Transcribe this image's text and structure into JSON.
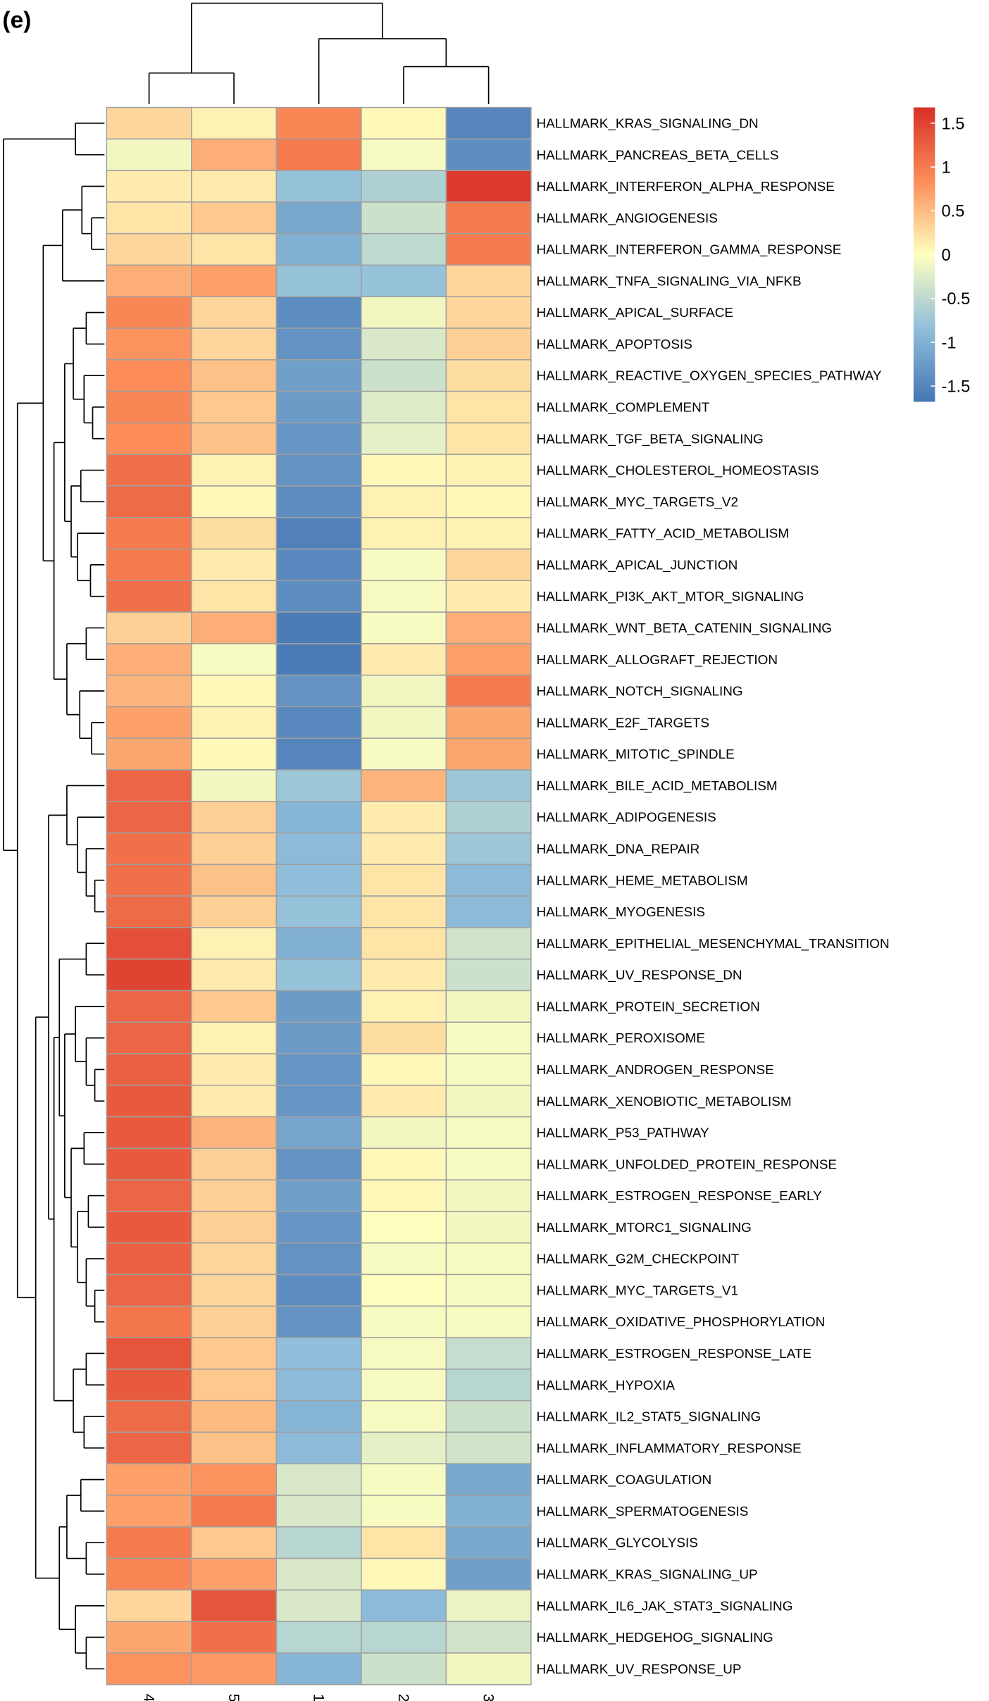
{
  "chart_data": {
    "type": "heatmap",
    "panel_label": "(e)",
    "columns": [
      "4",
      "5",
      "1",
      "2",
      "3"
    ],
    "rows": [
      "HALLMARK_KRAS_SIGNALING_DN",
      "HALLMARK_PANCREAS_BETA_CELLS",
      "HALLMARK_INTERFERON_ALPHA_RESPONSE",
      "HALLMARK_ANGIOGENESIS",
      "HALLMARK_INTERFERON_GAMMA_RESPONSE",
      "HALLMARK_TNFA_SIGNALING_VIA_NFKB",
      "HALLMARK_APICAL_SURFACE",
      "HALLMARK_APOPTOSIS",
      "HALLMARK_REACTIVE_OXYGEN_SPECIES_PATHWAY",
      "HALLMARK_COMPLEMENT",
      "HALLMARK_TGF_BETA_SIGNALING",
      "HALLMARK_CHOLESTEROL_HOMEOSTASIS",
      "HALLMARK_MYC_TARGETS_V2",
      "HALLMARK_FATTY_ACID_METABOLISM",
      "HALLMARK_APICAL_JUNCTION",
      "HALLMARK_PI3K_AKT_MTOR_SIGNALING",
      "HALLMARK_WNT_BETA_CATENIN_SIGNALING",
      "HALLMARK_ALLOGRAFT_REJECTION",
      "HALLMARK_NOTCH_SIGNALING",
      "HALLMARK_E2F_TARGETS",
      "HALLMARK_MITOTIC_SPINDLE",
      "HALLMARK_BILE_ACID_METABOLISM",
      "HALLMARK_ADIPOGENESIS",
      "HALLMARK_DNA_REPAIR",
      "HALLMARK_HEME_METABOLISM",
      "HALLMARK_MYOGENESIS",
      "HALLMARK_EPITHELIAL_MESENCHYMAL_TRANSITION",
      "HALLMARK_UV_RESPONSE_DN",
      "HALLMARK_PROTEIN_SECRETION",
      "HALLMARK_PEROXISOME",
      "HALLMARK_ANDROGEN_RESPONSE",
      "HALLMARK_XENOBIOTIC_METABOLISM",
      "HALLMARK_P53_PATHWAY",
      "HALLMARK_UNFOLDED_PROTEIN_RESPONSE",
      "HALLMARK_ESTROGEN_RESPONSE_EARLY",
      "HALLMARK_MTORC1_SIGNALING",
      "HALLMARK_G2M_CHECKPOINT",
      "HALLMARK_MYC_TARGETS_V1",
      "HALLMARK_OXIDATIVE_PHOSPHORYLATION",
      "HALLMARK_ESTROGEN_RESPONSE_LATE",
      "HALLMARK_HYPOXIA",
      "HALLMARK_IL2_STAT5_SIGNALING",
      "HALLMARK_INFLAMMATORY_RESPONSE",
      "HALLMARK_COAGULATION",
      "HALLMARK_SPERMATOGENESIS",
      "HALLMARK_GLYCOLYSIS",
      "HALLMARK_KRAS_SIGNALING_UP",
      "HALLMARK_IL6_JAK_STAT3_SIGNALING",
      "HALLMARK_HEDGEHOG_SIGNALING",
      "HALLMARK_UV_RESPONSE_UP"
    ],
    "values": [
      [
        0.3,
        0.1,
        0.9,
        0.05,
        -1.5
      ],
      [
        -0.1,
        0.6,
        1.0,
        -0.05,
        -1.4
      ],
      [
        0.15,
        0.15,
        -0.8,
        -0.6,
        1.6
      ],
      [
        0.2,
        0.4,
        -1.1,
        -0.4,
        1.0
      ],
      [
        0.3,
        0.2,
        -1.0,
        -0.5,
        1.0
      ],
      [
        0.6,
        0.7,
        -0.8,
        -0.8,
        0.3
      ],
      [
        0.9,
        0.3,
        -1.4,
        -0.1,
        0.3
      ],
      [
        0.8,
        0.3,
        -1.35,
        -0.3,
        0.35
      ],
      [
        0.85,
        0.45,
        -1.2,
        -0.4,
        0.25
      ],
      [
        0.9,
        0.4,
        -1.25,
        -0.25,
        0.2
      ],
      [
        0.85,
        0.45,
        -1.3,
        -0.2,
        0.2
      ],
      [
        1.1,
        0.1,
        -1.35,
        0.05,
        0.1
      ],
      [
        1.15,
        0.05,
        -1.4,
        0.1,
        0.05
      ],
      [
        1.0,
        0.25,
        -1.55,
        0.1,
        0.1
      ],
      [
        1.0,
        0.15,
        -1.45,
        -0.05,
        0.3
      ],
      [
        1.1,
        0.2,
        -1.4,
        -0.05,
        0.15
      ],
      [
        0.35,
        0.6,
        -1.6,
        -0.05,
        0.6
      ],
      [
        0.6,
        -0.05,
        -1.6,
        0.15,
        0.7
      ],
      [
        0.55,
        0.05,
        -1.35,
        -0.1,
        1.0
      ],
      [
        0.7,
        0.1,
        -1.45,
        -0.1,
        0.65
      ],
      [
        0.65,
        0.05,
        -1.5,
        -0.05,
        0.65
      ],
      [
        1.2,
        -0.1,
        -0.75,
        0.55,
        -0.75
      ],
      [
        1.2,
        0.35,
        -0.95,
        0.15,
        -0.6
      ],
      [
        1.1,
        0.35,
        -0.9,
        0.15,
        -0.75
      ],
      [
        1.1,
        0.45,
        -0.85,
        0.2,
        -0.9
      ],
      [
        1.15,
        0.35,
        -0.8,
        0.2,
        -0.9
      ],
      [
        1.4,
        0.1,
        -1.0,
        0.2,
        -0.35
      ],
      [
        1.5,
        0.15,
        -0.8,
        0.15,
        -0.4
      ],
      [
        1.2,
        0.4,
        -1.25,
        0.1,
        -0.1
      ],
      [
        1.2,
        0.1,
        -1.25,
        0.25,
        -0.05
      ],
      [
        1.25,
        0.15,
        -1.3,
        0.05,
        -0.05
      ],
      [
        1.3,
        0.15,
        -1.3,
        0.15,
        -0.1
      ],
      [
        1.3,
        0.55,
        -1.15,
        -0.1,
        -0.05
      ],
      [
        1.3,
        0.35,
        -1.35,
        0.05,
        -0.05
      ],
      [
        1.2,
        0.35,
        -1.2,
        0.05,
        -0.1
      ],
      [
        1.3,
        0.35,
        -1.3,
        0.0,
        -0.1
      ],
      [
        1.25,
        0.3,
        -1.35,
        -0.05,
        -0.05
      ],
      [
        1.2,
        0.3,
        -1.4,
        0.0,
        -0.05
      ],
      [
        1.05,
        0.35,
        -1.35,
        -0.05,
        -0.05
      ],
      [
        1.35,
        0.4,
        -0.85,
        -0.05,
        -0.45
      ],
      [
        1.3,
        0.4,
        -0.9,
        -0.05,
        -0.55
      ],
      [
        1.15,
        0.5,
        -0.95,
        -0.05,
        -0.4
      ],
      [
        1.2,
        0.45,
        -0.9,
        -0.2,
        -0.35
      ],
      [
        0.7,
        0.8,
        -0.3,
        -0.05,
        -1.1
      ],
      [
        0.7,
        1.0,
        -0.3,
        -0.05,
        -1.0
      ],
      [
        1.0,
        0.4,
        -0.55,
        0.2,
        -1.1
      ],
      [
        0.9,
        0.7,
        -0.3,
        0.05,
        -1.2
      ],
      [
        0.3,
        1.35,
        -0.3,
        -0.9,
        -0.15
      ],
      [
        0.65,
        1.1,
        -0.55,
        -0.55,
        -0.35
      ],
      [
        0.8,
        0.75,
        -0.95,
        -0.4,
        -0.1
      ]
    ],
    "colorbar": {
      "lim": [
        -1.68,
        1.68
      ],
      "ticks": [
        1.5,
        1,
        0.5,
        0,
        -0.5,
        -1,
        -1.5
      ],
      "colors": [
        "#4575b4",
        "#91bfdb",
        "#ffffbf",
        "#fc8d59",
        "#d73027"
      ]
    },
    "cell_border": "#a0a0a0"
  }
}
